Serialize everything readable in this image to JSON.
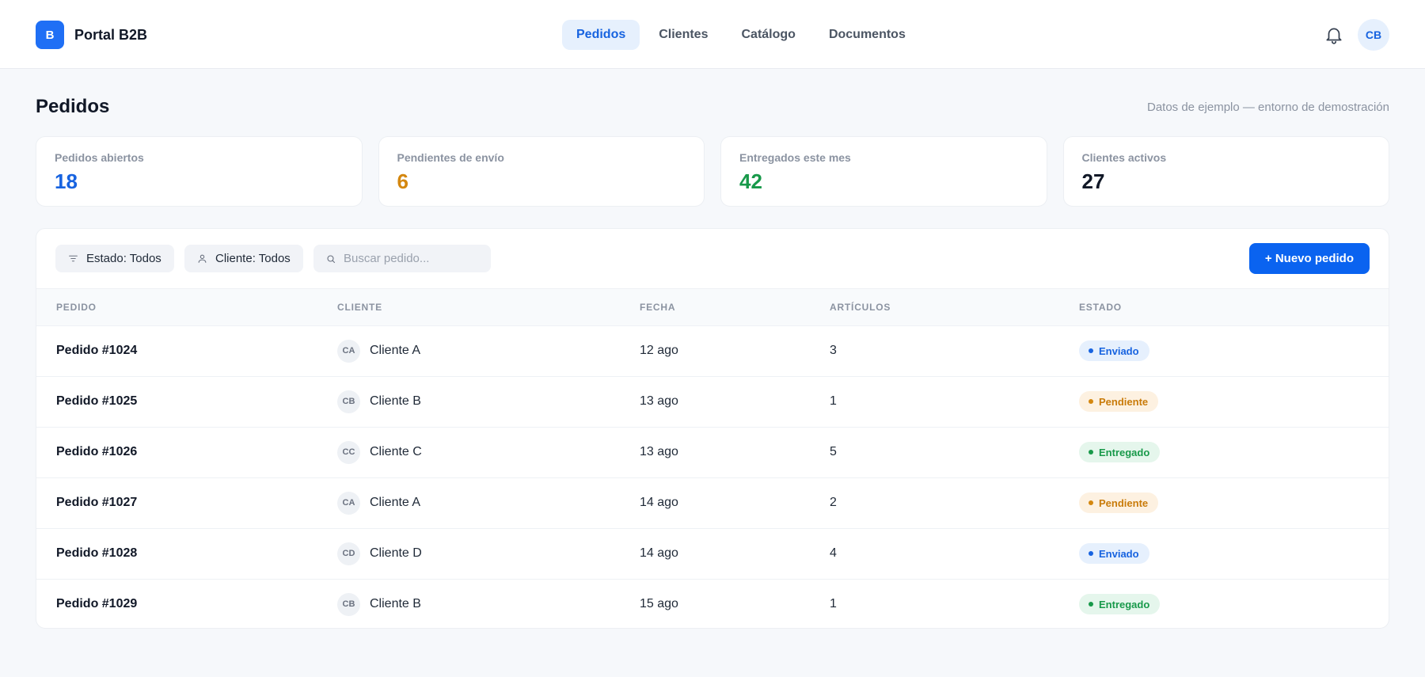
{
  "header": {
    "logo_letter": "B",
    "app_name": "Portal B2B",
    "nav": [
      {
        "label": "Pedidos",
        "active": true
      },
      {
        "label": "Clientes",
        "active": false
      },
      {
        "label": "Catálogo",
        "active": false
      },
      {
        "label": "Documentos",
        "active": false
      }
    ],
    "notifications_icon": "bell-icon",
    "user_initials": "CB"
  },
  "page": {
    "title": "Pedidos",
    "note": "Datos de ejemplo — entorno de demostración"
  },
  "stats": [
    {
      "label": "Pedidos abiertos",
      "value": "18",
      "color": "#1763e0"
    },
    {
      "label": "Pendientes de envío",
      "value": "6",
      "color": "#d4870f"
    },
    {
      "label": "Entregados este mes",
      "value": "42",
      "color": "#18994a"
    },
    {
      "label": "Clientes activos",
      "value": "27",
      "color": "#111827"
    }
  ],
  "toolbar": {
    "status_filter": "Estado: Todos",
    "status_filter_icon": "filter-icon",
    "client_filter": "Cliente: Todos",
    "client_filter_icon": "user-icon",
    "search_icon": "search-icon",
    "search_placeholder": "Buscar pedido...",
    "new_order_label": "+ Nuevo pedido"
  },
  "table": {
    "columns": [
      "PEDIDO",
      "CLIENTE",
      "FECHA",
      "ARTÍCULOS",
      "ESTADO"
    ],
    "rows": [
      {
        "order": "Pedido #1024",
        "client_initials": "CA",
        "client": "Cliente A",
        "date": "12 ago",
        "items": "3",
        "status": "Enviado",
        "status_key": "enviado"
      },
      {
        "order": "Pedido #1025",
        "client_initials": "CB",
        "client": "Cliente B",
        "date": "13 ago",
        "items": "1",
        "status": "Pendiente",
        "status_key": "pendiente"
      },
      {
        "order": "Pedido #1026",
        "client_initials": "CC",
        "client": "Cliente C",
        "date": "13 ago",
        "items": "5",
        "status": "Entregado",
        "status_key": "entregado"
      },
      {
        "order": "Pedido #1027",
        "client_initials": "CA",
        "client": "Cliente A",
        "date": "14 ago",
        "items": "2",
        "status": "Pendiente",
        "status_key": "pendiente"
      },
      {
        "order": "Pedido #1028",
        "client_initials": "CD",
        "client": "Cliente D",
        "date": "14 ago",
        "items": "4",
        "status": "Enviado",
        "status_key": "enviado"
      },
      {
        "order": "Pedido #1029",
        "client_initials": "CB",
        "client": "Cliente B",
        "date": "15 ago",
        "items": "1",
        "status": "Entregado",
        "status_key": "entregado"
      }
    ]
  }
}
